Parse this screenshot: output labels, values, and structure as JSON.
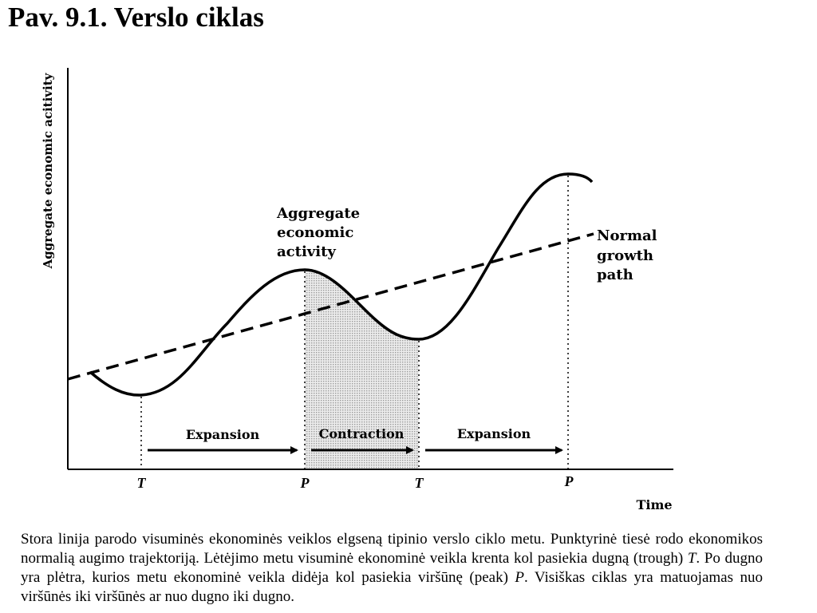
{
  "title": "Pav. 9.1. Verslo ciklas",
  "diagram": {
    "y_axis_label": "Aggregate economic acitivity",
    "x_axis_label": "Time",
    "curve_label": [
      "Aggregate",
      "economic",
      "activity"
    ],
    "trend_label": [
      "Normal",
      "growth",
      "path"
    ],
    "phases": [
      "Expansion",
      "Contraction",
      "Expansion"
    ],
    "ticks": [
      "T",
      "P",
      "T",
      "P"
    ]
  },
  "caption": {
    "part1": "Stora linija parodo visuminės ekonominės veiklos elgseną tipinio verslo ciklo metu. Punktyrinė tiesė rodo ekonomikos normalią augimo trajektoriją. Lėtėjimo metu visuminė ekonominė veikla krenta kol pasiekia dugną (trough) ",
    "t": "T",
    "part2": ". Po dugno yra plėtra, kurios metu ekonominė veikla didėja kol pasiekia viršūnę (peak) ",
    "p": "P",
    "part3": ". Visiškas ciklas yra matuojamas nuo viršūnės iki viršūnės ar nuo dugno iki dugno."
  }
}
